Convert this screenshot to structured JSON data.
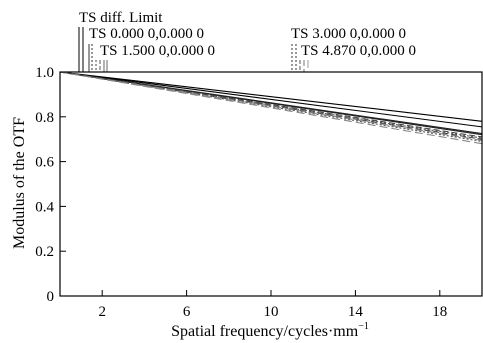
{
  "chart_data": {
    "type": "line",
    "xlabel": "Spatial frequency/cycles·mm",
    "xlabel_sup": "−1",
    "ylabel": "Modulus of the OTF",
    "xlim": [
      0,
      20
    ],
    "ylim": [
      0,
      1.0
    ],
    "x_ticks": [
      2,
      6,
      10,
      14,
      18
    ],
    "y_ticks": [
      0,
      0.2,
      0.4,
      0.6,
      0.8,
      1.0
    ],
    "x_tick_labels": [
      "2",
      "6",
      "10",
      "14",
      "18"
    ],
    "y_tick_labels": [
      "0",
      "0.2",
      "0.4",
      "0.6",
      "0.8",
      "1.0"
    ],
    "grid": false,
    "legend_labels": [
      "TS diff. Limit",
      "TS 0.000 0,0.000 0",
      "TS 1.500 0,0.000 0",
      "TS 3.000 0,0.000 0",
      "TS 4.870 0,0.000 0"
    ],
    "series": [
      {
        "name": "TS diff. Limit",
        "line_color": "#000000",
        "dash": "",
        "x": [
          0,
          20
        ],
        "y_t": [
          1.0,
          0.78
        ],
        "y_s": [
          1.0,
          0.755
        ]
      },
      {
        "name": "TS 0.000 0,0.000 0",
        "line_color": "#222222",
        "dash": "",
        "x": [
          0,
          20
        ],
        "y_t": [
          1.0,
          0.725
        ],
        "y_s": [
          1.0,
          0.72
        ]
      },
      {
        "name": "TS 1.500 0,0.000 0",
        "line_color": "#444444",
        "dash": "6,3",
        "x": [
          0,
          20
        ],
        "y_t": [
          1.0,
          0.71
        ],
        "y_s": [
          1.0,
          0.7
        ]
      },
      {
        "name": "TS 3.000 0,0.000 0",
        "line_color": "#555555",
        "dash": "2,2",
        "x": [
          0,
          20
        ],
        "y_t": [
          1.0,
          0.705
        ],
        "y_s": [
          1.0,
          0.69
        ]
      },
      {
        "name": "TS 4.870 0,0.000 0",
        "line_color": "#888888",
        "dash": "8,4",
        "x": [
          0,
          20
        ],
        "y_t": [
          1.0,
          0.695
        ],
        "y_s": [
          1.0,
          0.68
        ]
      }
    ]
  }
}
